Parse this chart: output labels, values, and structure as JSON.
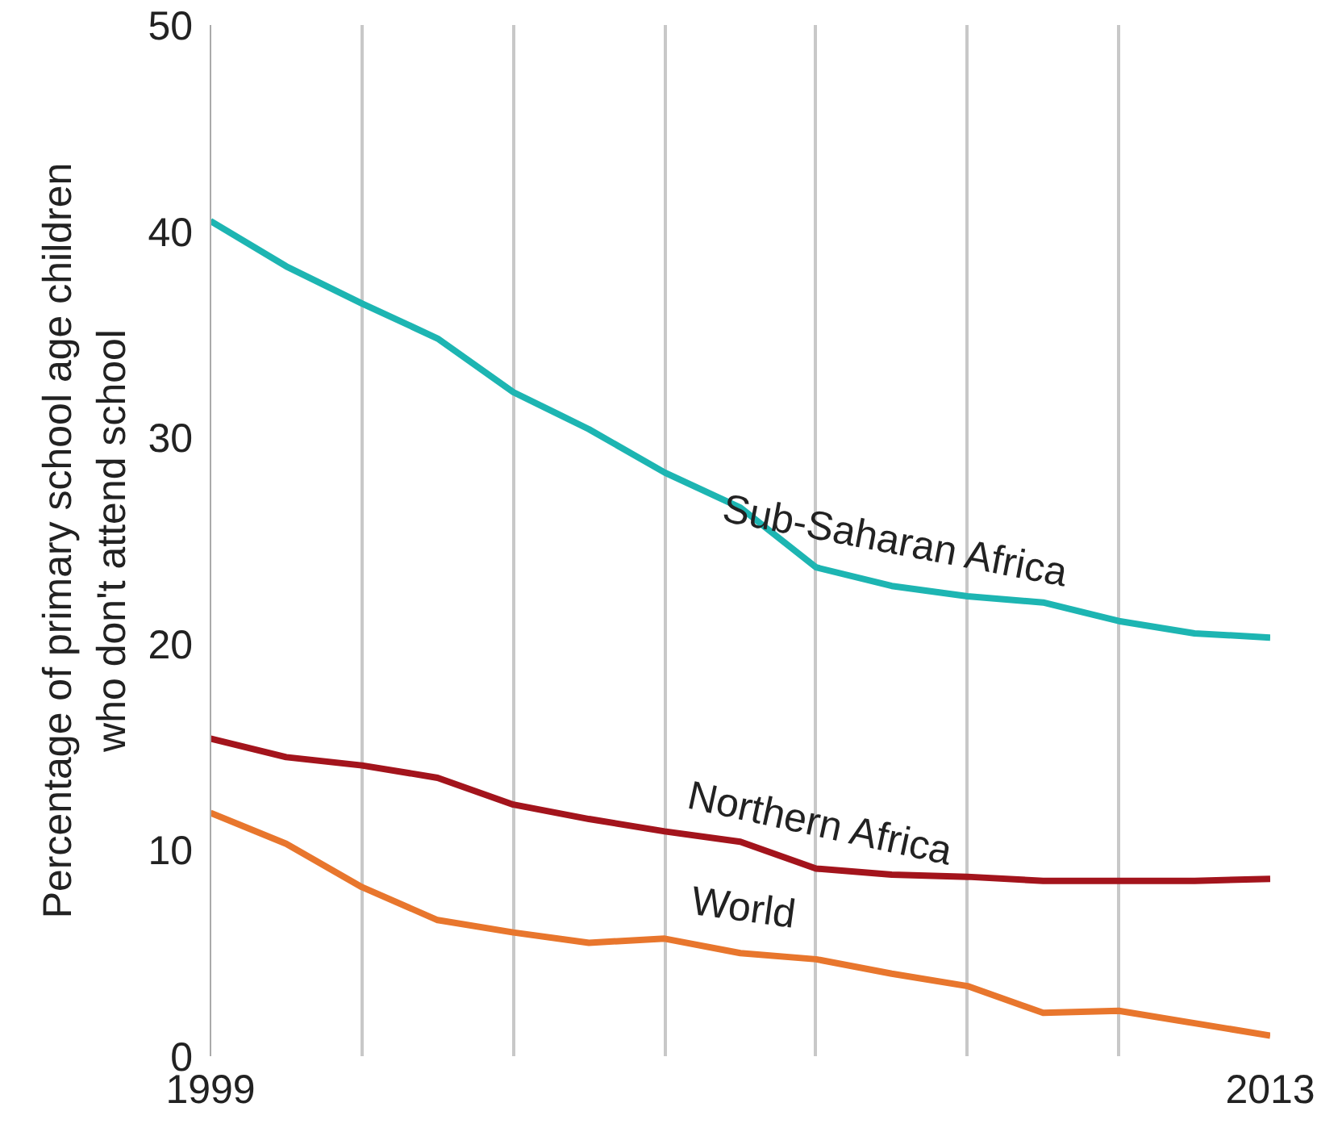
{
  "chart_data": {
    "type": "line",
    "ylabel": "Percentage of primary school age children\nwho don't attend school",
    "x": [
      1999,
      2000,
      2001,
      2002,
      2003,
      2004,
      2005,
      2006,
      2007,
      2008,
      2009,
      2010,
      2011,
      2012,
      2013
    ],
    "series": [
      {
        "name": "Sub-Saharan Africa",
        "color": "#1db5b2",
        "values": [
          40.5,
          38.3,
          36.5,
          34.8,
          32.2,
          30.4,
          28.3,
          26.6,
          23.7,
          22.8,
          22.3,
          22.0,
          21.1,
          20.5,
          20.3
        ]
      },
      {
        "name": "Northern Africa",
        "color": "#a3141c",
        "values": [
          15.4,
          14.5,
          14.1,
          13.5,
          12.2,
          11.5,
          10.9,
          10.4,
          9.1,
          8.8,
          8.7,
          8.5,
          8.5,
          8.5,
          8.6
        ]
      },
      {
        "name": "World",
        "color": "#e8762d",
        "values": [
          11.8,
          10.3,
          8.2,
          6.6,
          6.0,
          5.5,
          5.7,
          5.0,
          4.7,
          4.0,
          3.4,
          2.1,
          2.2,
          1.6,
          1.0
        ]
      }
    ],
    "xlim": [
      1999,
      2013
    ],
    "ylim": [
      0,
      50
    ],
    "xticks": [
      1999,
      {
        "value": 2001,
        "label": null
      },
      {
        "value": 2003,
        "label": null
      },
      {
        "value": 2005,
        "label": null
      },
      {
        "value": 2007,
        "label": null
      },
      {
        "value": 2009,
        "label": null
      },
      {
        "value": 2011,
        "label": null
      },
      2013
    ],
    "yticks": [
      0,
      10,
      20,
      30,
      40,
      50
    ],
    "grid": "x",
    "marker": "none",
    "line_style": "solid"
  }
}
